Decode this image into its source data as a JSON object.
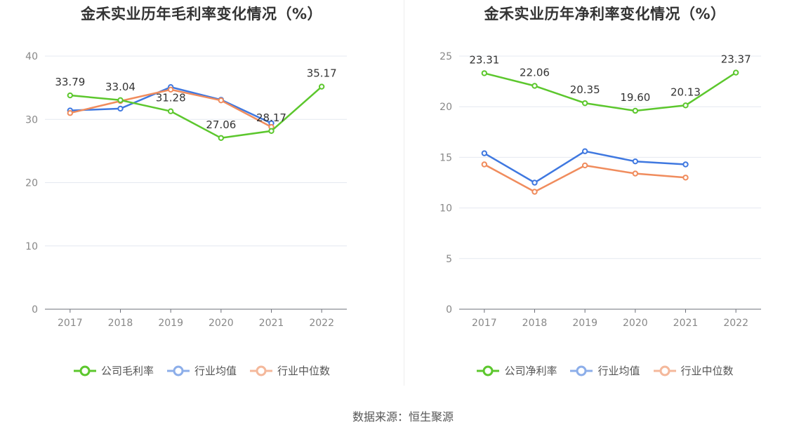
{
  "source_text": "数据来源：恒生聚源",
  "chart_data": [
    {
      "type": "line",
      "title": "金禾实业历年毛利率变化情况（%）",
      "x": [
        "2017",
        "2018",
        "2019",
        "2020",
        "2021",
        "2022"
      ],
      "ylim": [
        0,
        40
      ],
      "yticks": [
        0,
        10,
        20,
        30,
        40
      ],
      "grid": true,
      "legend_position": "bottom",
      "series": [
        {
          "name": "公司毛利率",
          "color": "#5cc72d",
          "values": [
            33.79,
            33.04,
            31.28,
            27.06,
            28.17,
            35.17
          ],
          "labels": [
            "33.79",
            "33.04",
            "31.28",
            "27.06",
            "28.17",
            "35.17"
          ]
        },
        {
          "name": "行业均值",
          "color": "#3f78e0",
          "values": [
            31.4,
            31.7,
            35.1,
            33.1,
            29.4,
            null
          ]
        },
        {
          "name": "行业中位数",
          "color": "#f08c5d",
          "values": [
            31.0,
            32.9,
            34.7,
            33.0,
            28.8,
            null
          ]
        }
      ]
    },
    {
      "type": "line",
      "title": "金禾实业历年净利率变化情况（%）",
      "x": [
        "2017",
        "2018",
        "2019",
        "2020",
        "2021",
        "2022"
      ],
      "ylim": [
        0,
        25
      ],
      "yticks": [
        0,
        5,
        10,
        15,
        20,
        25
      ],
      "grid": true,
      "legend_position": "bottom",
      "series": [
        {
          "name": "公司净利率",
          "color": "#5cc72d",
          "values": [
            23.31,
            22.06,
            20.35,
            19.6,
            20.13,
            23.37
          ],
          "labels": [
            "23.31",
            "22.06",
            "20.35",
            "19.60",
            "20.13",
            "23.37"
          ]
        },
        {
          "name": "行业均值",
          "color": "#3f78e0",
          "values": [
            15.4,
            12.5,
            15.6,
            14.6,
            14.3,
            null
          ]
        },
        {
          "name": "行业中位数",
          "color": "#f08c5d",
          "values": [
            14.3,
            11.6,
            14.2,
            13.4,
            13.0,
            null
          ]
        }
      ]
    }
  ]
}
